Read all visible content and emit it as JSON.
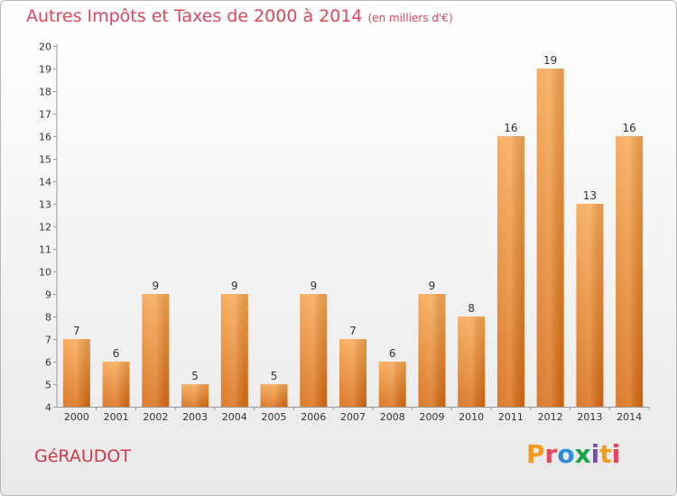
{
  "header": {
    "title": "Autres Impôts et Taxes de 2000 à 2014",
    "unit": "(en milliers d'€)"
  },
  "footer": {
    "commune": "GéRAUDOT",
    "logo": "Proxiti",
    "logo_colors": [
      "#f39b1d",
      "#e0475a",
      "#2f8fd8",
      "#1aa34a",
      "#7a4fb5",
      "#f39b1d",
      "#e0475a"
    ]
  },
  "chart_data": {
    "type": "bar",
    "categories": [
      "2000",
      "2001",
      "2002",
      "2003",
      "2004",
      "2005",
      "2006",
      "2007",
      "2008",
      "2009",
      "2010",
      "2011",
      "2012",
      "2013",
      "2014"
    ],
    "values": [
      7,
      6,
      9,
      5,
      9,
      5,
      9,
      7,
      6,
      9,
      8,
      16,
      19,
      13,
      16
    ],
    "ylim": [
      4,
      20
    ],
    "yticks": [
      4,
      5,
      6,
      7,
      8,
      9,
      10,
      11,
      12,
      13,
      14,
      15,
      16,
      17,
      18,
      19,
      20
    ],
    "grid": false,
    "bar_color": "#f08a24",
    "title": "Autres Impôts et Taxes de 2000 à 2014",
    "xlabel": "",
    "ylabel": ""
  }
}
